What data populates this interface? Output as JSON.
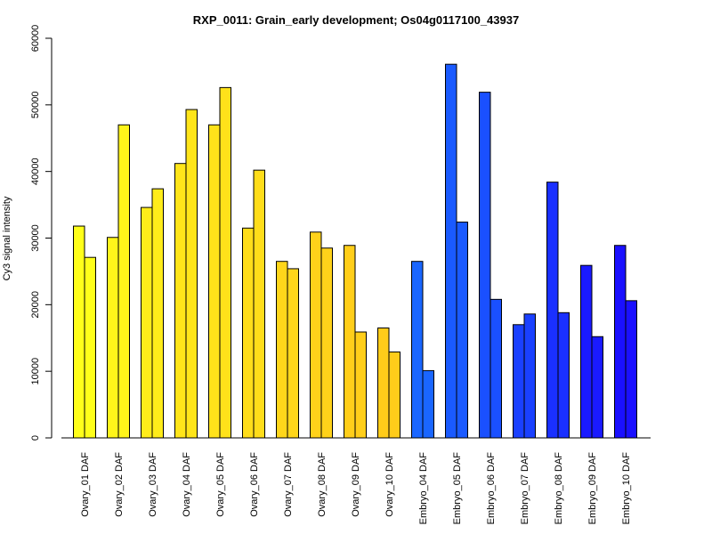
{
  "chart_data": {
    "type": "bar",
    "title": "RXP_0011: Grain_early development; Os04g0117100_43937",
    "xlabel": "",
    "ylabel": "Cy3 signal intensity",
    "ylim": [
      0,
      60000
    ],
    "yticks": [
      0,
      10000,
      20000,
      30000,
      40000,
      50000,
      60000
    ],
    "grid": false,
    "categories": [
      "Ovary_01 DAF",
      "Ovary_02 DAF",
      "Ovary_03 DAF",
      "Ovary_04 DAF",
      "Ovary_05 DAF",
      "Ovary_06 DAF",
      "Ovary_07 DAF",
      "Ovary_08 DAF",
      "Ovary_09 DAF",
      "Ovary_10 DAF",
      "Embryo_04 DAF",
      "Embryo_05 DAF",
      "Embryo_06 DAF",
      "Embryo_07 DAF",
      "Embryo_08 DAF",
      "Embryo_09 DAF",
      "Embryo_10 DAF"
    ],
    "series": [
      {
        "values": [
          31800,
          30100,
          34600,
          41200,
          47000,
          31500,
          26500,
          30900,
          28900,
          16500,
          26500,
          56100,
          51900,
          17000,
          38400,
          25900,
          28900
        ]
      },
      {
        "values": [
          27100,
          47000,
          37400,
          49300,
          52600,
          40200,
          25400,
          28500,
          15900,
          12900,
          10100,
          32400,
          20800,
          18600,
          18800,
          15200,
          20600
        ]
      }
    ],
    "colors": [
      "#ffff1a",
      "#fff51a",
      "#ffec1a",
      "#ffe51a",
      "#ffe21a",
      "#ffdd1a",
      "#ffd61a",
      "#ffd21a",
      "#ffce1a",
      "#ffcc1a",
      "#1a66ff",
      "#1a5aff",
      "#1a50ff",
      "#1a40ff",
      "#1a30ff",
      "#1a1aff",
      "#1a10ff"
    ]
  }
}
